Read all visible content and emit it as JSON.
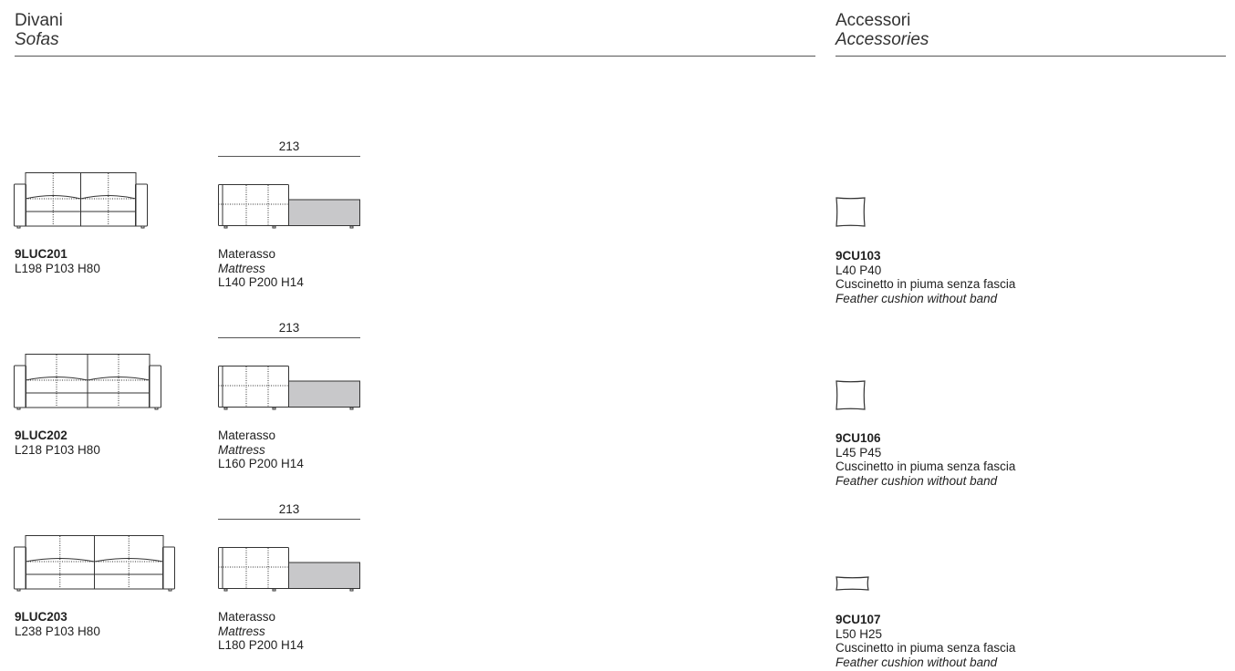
{
  "sofas_header": {
    "title": "Divani",
    "subtitle": "Sofas"
  },
  "accessories_header": {
    "title": "Accessori",
    "subtitle": "Accessories"
  },
  "sofas": [
    {
      "code": "9LUC201",
      "dims": "L198 P103 H80",
      "bed_label": "Materasso",
      "bed_label_en": "Mattress",
      "bed_dims": "L140 P200 H14",
      "open_length": "213"
    },
    {
      "code": "9LUC202",
      "dims": "L218 P103 H80",
      "bed_label": "Materasso",
      "bed_label_en": "Mattress",
      "bed_dims": "L160 P200 H14",
      "open_length": "213"
    },
    {
      "code": "9LUC203",
      "dims": "L238 P103 H80",
      "bed_label": "Materasso",
      "bed_label_en": "Mattress",
      "bed_dims": "L180 P200 H14",
      "open_length": "213"
    }
  ],
  "accessories": [
    {
      "code": "9CU103",
      "dims": "L40 P40",
      "desc": "Cuscinetto in piuma senza fascia",
      "desc_en": "Feather cushion without band"
    },
    {
      "code": "9CU106",
      "dims": "L45 P45",
      "desc": "Cuscinetto in piuma senza fascia",
      "desc_en": "Feather cushion without band"
    },
    {
      "code": "9CU107",
      "dims": "L50 H25",
      "desc": "Cuscinetto in piuma senza fascia",
      "desc_en": "Feather cushion without band"
    }
  ],
  "colors": {
    "mattress_fill": "#c8c8ca",
    "line": "#333333"
  }
}
